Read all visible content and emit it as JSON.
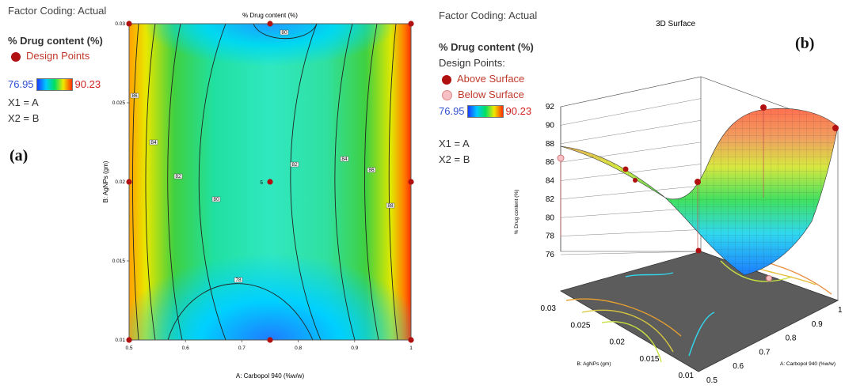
{
  "left": {
    "factor_coding": "Factor Coding: Actual",
    "response_title": "% Drug content (%)",
    "design_points_label": "Design Points",
    "range_low": "76.95",
    "range_high": "90.23",
    "x1": "X1 = A",
    "x2": "X2 = B",
    "panel_letter": "(a)"
  },
  "right": {
    "factor_coding": "Factor Coding: Actual",
    "response_title": "% Drug content (%)",
    "design_points_label": "Design Points:",
    "above_label": "Above Surface",
    "below_label": "Below Surface",
    "range_low": "76.95",
    "range_high": "90.23",
    "x1": "X1 = A",
    "x2": "X2 = B",
    "panel_letter": "(b)"
  },
  "colors": {
    "design_point": "#b01010",
    "below_point": "#f6c0c4",
    "low": "#1a3cff",
    "high": "#ff3000"
  },
  "chart_data": [
    {
      "type": "contour",
      "title": "% Drug content (%)",
      "xlabel": "A: Carbopol 940 (%w/w)",
      "ylabel": "B: AgNPs (gm)",
      "xlim": [
        0.5,
        1
      ],
      "ylim": [
        0.01,
        0.03
      ],
      "x_ticks": [
        "0.5",
        "0.6",
        "0.7",
        "0.8",
        "0.9",
        "1"
      ],
      "y_ticks": [
        "0.01",
        "0.015",
        "0.02",
        "0.025",
        "0.03"
      ],
      "contour_labels": [
        "80",
        "86",
        "84",
        "82",
        "80",
        "82",
        "84",
        "86",
        "88",
        "78"
      ],
      "center_replicates": "5",
      "design_points": [
        {
          "x": 0.5,
          "y": 0.01
        },
        {
          "x": 0.75,
          "y": 0.01
        },
        {
          "x": 1,
          "y": 0.01
        },
        {
          "x": 0.5,
          "y": 0.02
        },
        {
          "x": 0.75,
          "y": 0.02
        },
        {
          "x": 1,
          "y": 0.02
        },
        {
          "x": 0.5,
          "y": 0.03
        },
        {
          "x": 0.75,
          "y": 0.03
        },
        {
          "x": 1,
          "y": 0.03
        }
      ]
    },
    {
      "type": "surface3d",
      "title": "3D Surface",
      "zlabel": "% Drug content (%)",
      "xlabel": "A: Carbopol 940 (%w/w)",
      "ylabel": "B: AgNPs (gm)",
      "z_ticks": [
        "76",
        "78",
        "80",
        "82",
        "84",
        "86",
        "88",
        "90",
        "92"
      ],
      "x_ticks": [
        "0.5",
        "0.6",
        "0.7",
        "0.8",
        "0.9",
        "1"
      ],
      "y_ticks": [
        "0.01",
        "0.015",
        "0.02",
        "0.025",
        "0.03"
      ]
    }
  ]
}
